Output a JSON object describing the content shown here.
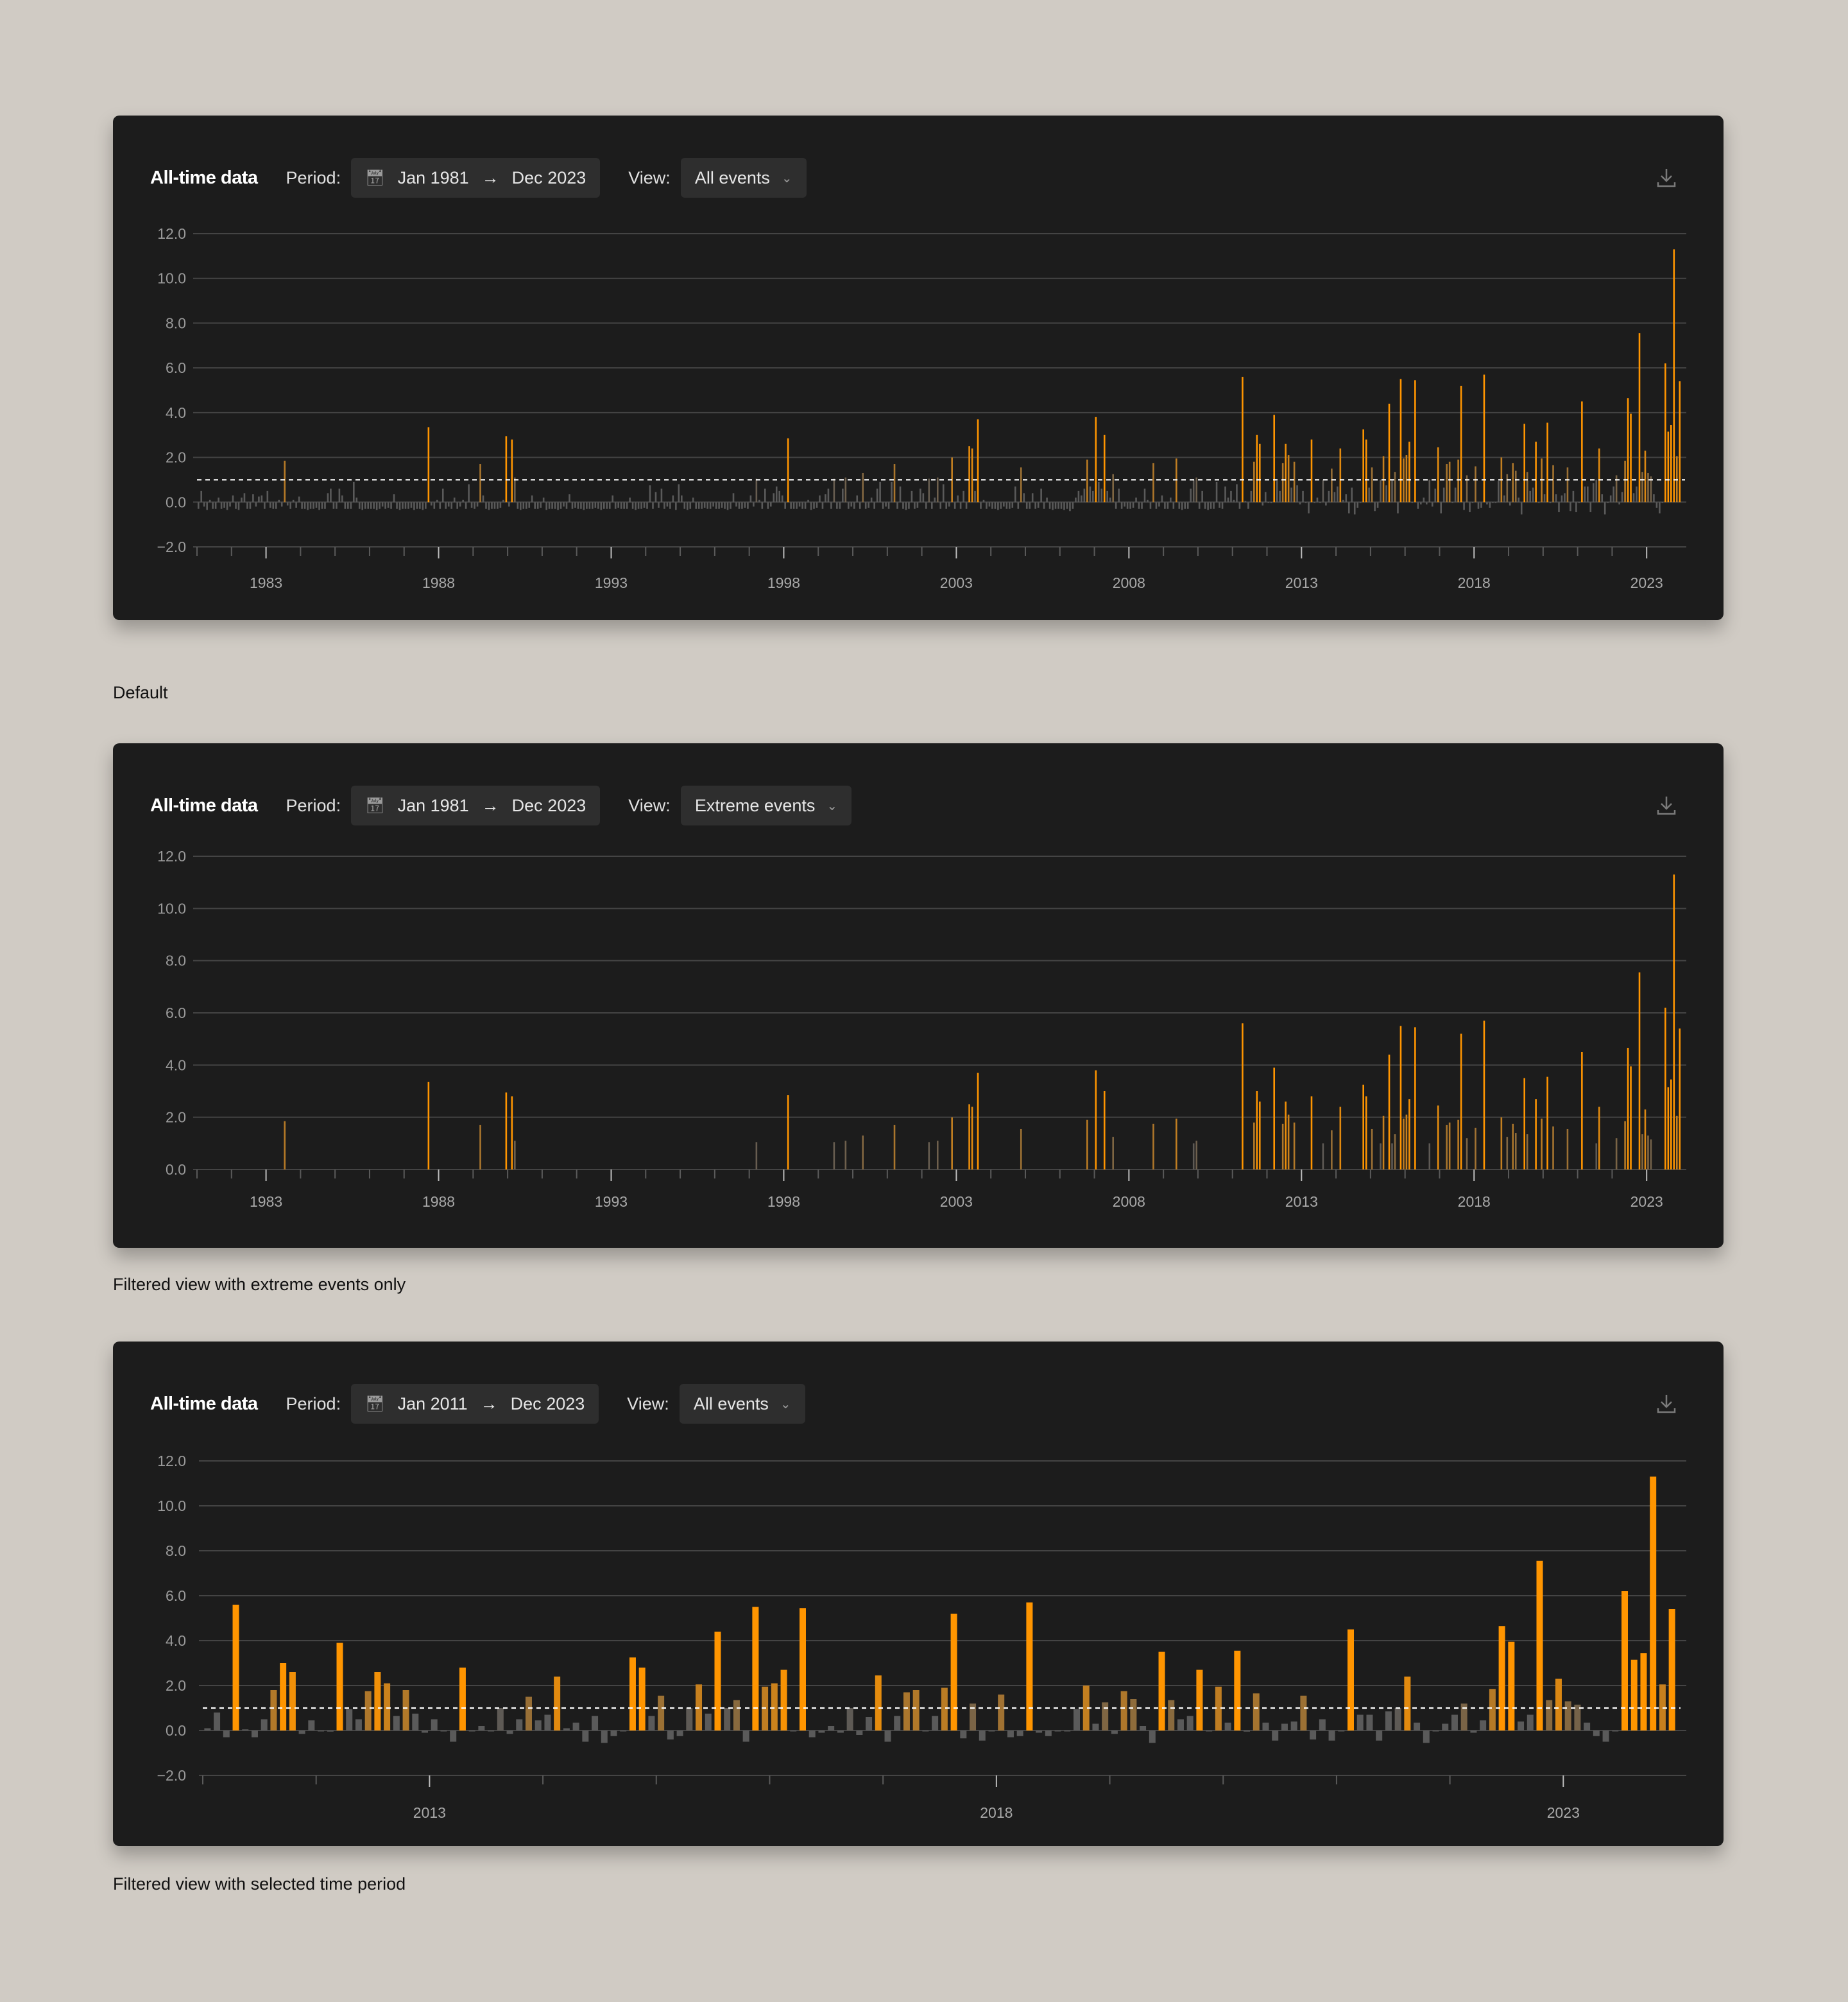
{
  "colors": {
    "background": "#d0cbc4",
    "panel": "#1c1c1c",
    "pill": "#2e2e2e",
    "grid": "#444444",
    "accent": "#ff9500",
    "neutral_bar": "#5a5a5a",
    "threshold_line": "#ffffff"
  },
  "icons": {
    "period": "calendar-icon",
    "arrow": "arrow-right-icon",
    "view": "chevron-down-icon",
    "download": "download-icon"
  },
  "panels": [
    {
      "title": "All-time data",
      "period_label": "Period:",
      "period_start": "Jan 1981",
      "period_end": "Dec 2023",
      "view_label": "View:",
      "view_value": "All events",
      "caption": "Default"
    },
    {
      "title": "All-time data",
      "period_label": "Period:",
      "period_start": "Jan 1981",
      "period_end": "Dec 2023",
      "view_label": "View:",
      "view_value": "Extreme events",
      "caption": "Filtered view with extreme events only"
    },
    {
      "title": "All-time data",
      "period_label": "Period:",
      "period_start": "Jan 2011",
      "period_end": "Dec 2023",
      "view_label": "View:",
      "view_value": "All events",
      "caption": "Filtered view with selected time period"
    }
  ],
  "chart_data": {
    "type": "bar",
    "frequency": "monthly",
    "series_monthly": {
      "1981": [
        -0.3,
        0.5,
        -0.2,
        -0.35,
        0.1,
        -0.3,
        -0.3,
        0.2,
        -0.3,
        -0.25,
        -0.35,
        -0.2
      ],
      "1982": [
        0.3,
        -0.3,
        -0.35,
        0.2,
        0.4,
        -0.3,
        -0.3,
        0.35,
        -0.2,
        0.25,
        0.3,
        -0.3
      ],
      "1983": [
        0.5,
        -0.25,
        -0.3,
        -0.3,
        0.1,
        -0.2,
        1.85,
        -0.15,
        -0.3,
        0.1,
        -0.25,
        0.25
      ],
      "1984": [
        -0.3,
        -0.3,
        -0.35,
        -0.3,
        -0.3,
        -0.25,
        -0.35,
        -0.3,
        -0.3,
        0.4,
        0.6,
        -0.3
      ],
      "1985": [
        -0.3,
        0.6,
        0.3,
        -0.3,
        -0.3,
        -0.3,
        0.9,
        0.2,
        -0.3,
        -0.35,
        -0.3,
        -0.3
      ],
      "1986": [
        -0.3,
        -0.3,
        -0.35,
        -0.3,
        -0.2,
        -0.3,
        -0.25,
        -0.3,
        0.35,
        -0.3,
        -0.35,
        -0.3
      ],
      "1987": [
        -0.3,
        -0.3,
        -0.25,
        -0.35,
        -0.3,
        -0.3,
        -0.35,
        -0.3,
        3.35,
        -0.15,
        -0.3,
        0.1
      ],
      "1988": [
        -0.3,
        0.6,
        -0.3,
        -0.2,
        -0.3,
        0.2,
        -0.3,
        -0.2,
        0.1,
        -0.3,
        0.8,
        -0.25
      ],
      "1989": [
        -0.3,
        -0.2,
        1.7,
        0.3,
        -0.3,
        -0.35,
        -0.3,
        -0.3,
        -0.3,
        -0.25,
        0.1,
        2.95
      ],
      "1990": [
        -0.2,
        2.8,
        1.1,
        -0.3,
        -0.35,
        -0.3,
        -0.3,
        -0.25,
        0.3,
        -0.3,
        -0.3,
        -0.25
      ],
      "1991": [
        0.2,
        -0.35,
        -0.3,
        -0.3,
        -0.3,
        -0.35,
        -0.3,
        -0.2,
        -0.3,
        0.35,
        -0.3,
        -0.25
      ],
      "1992": [
        -0.3,
        -0.3,
        -0.35,
        -0.3,
        -0.3,
        -0.3,
        -0.25,
        -0.3,
        -0.35,
        -0.3,
        -0.3,
        -0.3
      ],
      "1993": [
        0.3,
        -0.3,
        -0.25,
        -0.3,
        -0.3,
        -0.3,
        0.2,
        -0.3,
        -0.35,
        -0.3,
        -0.3,
        -0.25
      ],
      "1994": [
        -0.3,
        0.75,
        -0.3,
        0.45,
        -0.25,
        0.6,
        -0.3,
        -0.2,
        -0.3,
        0.3,
        -0.35,
        0.8
      ],
      "1995": [
        0.3,
        -0.3,
        -0.35,
        -0.3,
        0.2,
        -0.3,
        -0.3,
        -0.3,
        -0.25,
        -0.3,
        -0.3,
        -0.2
      ],
      "1996": [
        -0.3,
        -0.3,
        -0.25,
        -0.3,
        -0.35,
        -0.3,
        0.4,
        -0.2,
        -0.3,
        -0.3,
        -0.25,
        -0.3
      ],
      "1997": [
        0.3,
        -0.2,
        1.05,
        0.1,
        -0.3,
        0.6,
        -0.3,
        -0.2,
        0.4,
        0.7,
        0.5,
        0.3
      ],
      "1998": [
        -0.3,
        2.85,
        -0.3,
        -0.3,
        -0.3,
        -0.2,
        -0.3,
        -0.3,
        0.1,
        -0.35,
        -0.3,
        -0.25
      ],
      "1999": [
        0.3,
        -0.3,
        0.35,
        0.6,
        -0.3,
        1.05,
        -0.3,
        -0.3,
        0.6,
        1.1,
        -0.3,
        -0.2
      ],
      "2000": [
        -0.3,
        0.3,
        -0.3,
        1.3,
        -0.3,
        -0.25,
        0.2,
        -0.3,
        0.6,
        0.9,
        -0.3,
        -0.2
      ],
      "2001": [
        -0.3,
        0.9,
        1.7,
        -0.3,
        0.7,
        -0.3,
        -0.35,
        -0.3,
        0.5,
        -0.3,
        -0.25,
        0.6
      ],
      "2002": [
        0.4,
        -0.3,
        1.05,
        -0.3,
        0.2,
        1.1,
        -0.3,
        0.8,
        -0.3,
        -0.2,
        2.0,
        -0.3
      ],
      "2003": [
        0.3,
        -0.3,
        0.5,
        -0.3,
        2.5,
        2.4,
        0.5,
        3.7,
        -0.3,
        0.1,
        -0.3,
        -0.2
      ],
      "2004": [
        -0.3,
        -0.3,
        -0.35,
        -0.3,
        -0.2,
        -0.3,
        -0.3,
        -0.25,
        0.7,
        -0.3,
        1.55,
        0.4
      ],
      "2005": [
        -0.3,
        -0.3,
        0.4,
        -0.3,
        -0.25,
        0.6,
        -0.3,
        0.2,
        -0.3,
        -0.35,
        -0.3,
        -0.3
      ],
      "2006": [
        -0.3,
        -0.35,
        -0.3,
        -0.4,
        -0.3,
        0.2,
        0.5,
        0.3,
        0.6,
        1.9,
        0.7,
        0.5
      ],
      "2007": [
        3.8,
        0.9,
        0.6,
        3.0,
        0.5,
        0.2,
        1.25,
        -0.3,
        0.6,
        -0.3,
        -0.2,
        -0.3
      ],
      "2008": [
        -0.3,
        -0.25,
        0.2,
        -0.3,
        -0.3,
        0.6,
        0.1,
        -0.3,
        1.75,
        -0.3,
        -0.2,
        0.3
      ],
      "2009": [
        -0.3,
        -0.3,
        0.2,
        -0.3,
        1.95,
        -0.3,
        -0.35,
        -0.3,
        -0.3,
        0.6,
        1.0,
        1.1
      ],
      "2010": [
        -0.3,
        0.5,
        -0.3,
        -0.35,
        -0.3,
        -0.3,
        0.9,
        -0.25,
        -0.3,
        0.7,
        0.2,
        0.5
      ],
      "2011": [
        0.1,
        0.8,
        -0.3,
        5.6,
        0.05,
        -0.3,
        0.5,
        1.8,
        3.0,
        2.6,
        -0.15,
        0.45
      ],
      "2012": [
        0.0,
        -0.05,
        3.9,
        0.95,
        0.5,
        1.75,
        2.6,
        2.1,
        0.65,
        1.8,
        0.75,
        -0.1
      ],
      "2013": [
        0.5,
        0.0,
        -0.5,
        2.8,
        0.0,
        0.2,
        0.0,
        1.0,
        -0.15,
        0.5,
        1.5,
        0.45
      ],
      "2014": [
        0.7,
        2.4,
        0.1,
        0.35,
        -0.5,
        0.65,
        -0.55,
        -0.25,
        0.0,
        3.25,
        2.8,
        0.65
      ],
      "2015": [
        1.55,
        -0.4,
        -0.25,
        1.0,
        2.05,
        0.75,
        4.4,
        1.0,
        1.35,
        -0.5,
        5.5,
        1.95
      ],
      "2016": [
        2.1,
        2.7,
        0.0,
        5.45,
        -0.3,
        -0.1,
        0.2,
        -0.1,
        1.0,
        -0.2,
        0.6,
        2.45
      ],
      "2017": [
        -0.5,
        0.65,
        1.7,
        1.8,
        0.0,
        0.65,
        1.9,
        5.2,
        -0.35,
        1.2,
        -0.45,
        0.0
      ],
      "2018": [
        1.6,
        -0.3,
        -0.25,
        5.7,
        -0.1,
        -0.25,
        0.0,
        0.0,
        0.95,
        2.0,
        0.3,
        1.25
      ],
      "2019": [
        -0.15,
        1.75,
        1.4,
        0.2,
        -0.55,
        3.5,
        1.35,
        0.5,
        0.65,
        2.7,
        0.0,
        1.95
      ],
      "2020": [
        0.35,
        3.55,
        -0.05,
        1.65,
        0.35,
        -0.45,
        0.3,
        0.4,
        1.55,
        -0.4,
        0.5,
        -0.45
      ],
      "2021": [
        0.0,
        4.5,
        0.7,
        0.7,
        -0.45,
        0.85,
        1.0,
        2.4,
        0.35,
        -0.55,
        0.0,
        0.3
      ],
      "2022": [
        0.7,
        1.2,
        -0.1,
        0.45,
        1.85,
        4.65,
        3.95,
        0.4,
        0.7,
        7.55,
        1.35,
        2.3
      ],
      "2023": [
        1.3,
        1.15,
        0.35,
        -0.25,
        -0.5,
        0.0,
        6.2,
        3.15,
        3.45,
        11.3,
        2.05,
        5.4
      ]
    },
    "charts": [
      {
        "type": "bar",
        "x_range": [
          "1981-01",
          "2023-12"
        ],
        "ylim": [
          -2,
          12
        ],
        "yticks": [
          "12.0",
          "10.0",
          "8.0",
          "6.0",
          "4.0",
          "2.0",
          "0.0",
          "-2.0"
        ],
        "xtick_labels": [
          "1983",
          "1988",
          "1993",
          "1998",
          "2003",
          "2008",
          "2013",
          "2018",
          "2023"
        ],
        "threshold": 1.0,
        "filter": "all"
      },
      {
        "type": "bar",
        "x_range": [
          "1981-01",
          "2023-12"
        ],
        "ylim": [
          0,
          12
        ],
        "yticks": [
          "12.0",
          "10.0",
          "8.0",
          "6.0",
          "4.0",
          "2.0",
          "0.0"
        ],
        "xtick_labels": [
          "1983",
          "1988",
          "1993",
          "1998",
          "2003",
          "2008",
          "2013",
          "2018",
          "2023"
        ],
        "filter": "extreme",
        "extreme_min": 1.0
      },
      {
        "type": "bar",
        "x_range": [
          "2011-01",
          "2023-12"
        ],
        "ylim": [
          -2,
          12
        ],
        "yticks": [
          "12.0",
          "10.0",
          "8.0",
          "6.0",
          "4.0",
          "2.0",
          "0.0",
          "-2.0"
        ],
        "xtick_labels": [
          "2013",
          "2018",
          "2023"
        ],
        "threshold": 1.0,
        "filter": "all"
      }
    ]
  }
}
